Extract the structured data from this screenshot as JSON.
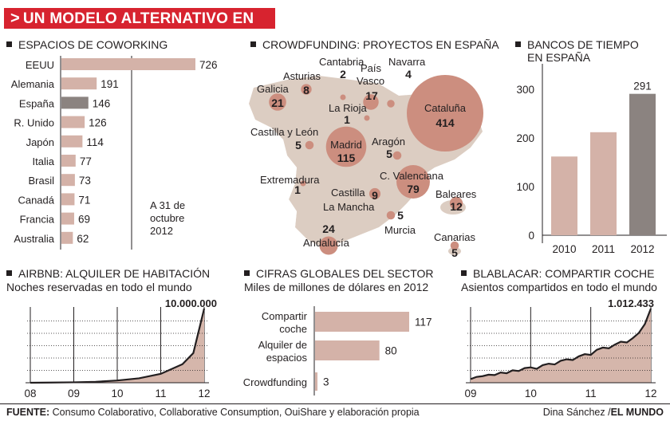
{
  "header": {
    "title": "UN MODELO ALTERNATIVO EN ALZA"
  },
  "colors": {
    "accent": "#d7232f",
    "bar": "#d4b2a8",
    "highlight": "#8b8380",
    "bubble": "#cc8e7f",
    "map": "#d9cbc0",
    "area": "#d5b6ab"
  },
  "coworking": {
    "title": "ESPACIOS DE COWORKING",
    "note": [
      "A 31 de",
      "octubre",
      "2012"
    ]
  },
  "crowdfunding": {
    "title": "CROWDFUNDING: PROYECTOS EN ESPAÑA"
  },
  "bancos": {
    "title_line1": "BANCOS DE TIEMPO",
    "title_line2": "EN ESPAÑA"
  },
  "airbnb": {
    "title": "AIRBNB: ALQUILER DE HABITACIÓN",
    "subtitle": "Noches reservadas en todo el mundo"
  },
  "cifras": {
    "title": "CIFRAS GLOBALES DEL SECTOR",
    "subtitle": "Miles de millones de dólares en 2012"
  },
  "blablacar": {
    "title": "BLABLACAR: COMPARTIR COCHE",
    "subtitle": "Asientos compartidos en todo el mundo"
  },
  "footer": {
    "source_label": "FUENTE:",
    "source_text": "Consumo Colaborativo, Collaborative Consumption, OuiShare y elaboración propia",
    "author": "Dina Sánchez /",
    "paper": "EL MUNDO"
  },
  "chart_data": [
    {
      "id": "coworking",
      "type": "bar",
      "orientation": "horizontal",
      "title": "ESPACIOS DE COWORKING",
      "categories": [
        "EEUU",
        "Alemania",
        "España",
        "R. Unido",
        "Japón",
        "Italia",
        "Brasil",
        "Canadá",
        "Francia",
        "Australia"
      ],
      "values": [
        726,
        191,
        146,
        126,
        114,
        77,
        73,
        71,
        69,
        62
      ],
      "highlight": "España"
    },
    {
      "id": "crowdfunding",
      "type": "bubble-map",
      "title": "CROWDFUNDING: PROYECTOS EN ESPAÑA",
      "regions": [
        {
          "name": "Cantabria",
          "value": 2
        },
        {
          "name": "País Vasco",
          "value": 17
        },
        {
          "name": "Navarra",
          "value": 4
        },
        {
          "name": "Asturias",
          "value": 8
        },
        {
          "name": "Galicia",
          "value": 21
        },
        {
          "name": "La Rioja",
          "value": 1
        },
        {
          "name": "Cataluña",
          "value": 414
        },
        {
          "name": "Castilla y León",
          "value": 5
        },
        {
          "name": "Madrid",
          "value": 115
        },
        {
          "name": "Aragón",
          "value": 5
        },
        {
          "name": "Extremadura",
          "value": 1
        },
        {
          "name": "C. Valenciana",
          "value": 79
        },
        {
          "name": "Castilla La Mancha",
          "value": 9
        },
        {
          "name": "Baleares",
          "value": 12
        },
        {
          "name": "Murcia",
          "value": 5
        },
        {
          "name": "Andalucía",
          "value": 24
        },
        {
          "name": "Canarias",
          "value": 5
        }
      ]
    },
    {
      "id": "bancos",
      "type": "bar",
      "title": "BANCOS DE TIEMPO EN ESPAÑA",
      "categories": [
        "2010",
        "2011",
        "2012"
      ],
      "values": [
        162,
        212,
        291
      ],
      "data_label": "291",
      "yticks": [
        0,
        100,
        200,
        300
      ],
      "ylim": [
        0,
        320
      ]
    },
    {
      "id": "airbnb",
      "type": "area",
      "title": "AIRBNB: ALQUILER DE HABITACIÓN",
      "subtitle": "Noches reservadas en todo el mundo",
      "tick_labels": [
        "08",
        "09",
        "10",
        "11",
        "12"
      ],
      "x": [
        2008.0,
        2008.5,
        2009.0,
        2009.5,
        2010.0,
        2010.5,
        2011.0,
        2011.5,
        2011.75,
        2012.0
      ],
      "values": [
        0,
        30000,
        60000,
        130000,
        300000,
        600000,
        1200000,
        2500000,
        4000000,
        10000000
      ],
      "label": "10.000.000",
      "ylim": [
        0,
        10000000
      ]
    },
    {
      "id": "cifras",
      "type": "bar",
      "orientation": "horizontal",
      "title": "CIFRAS GLOBALES DEL SECTOR",
      "subtitle": "Miles de millones de dólares en 2012",
      "categories": [
        [
          "Compartir",
          "coche"
        ],
        [
          "Alquiler de",
          "espacios"
        ],
        [
          "Crowdfunding"
        ]
      ],
      "values": [
        117,
        80,
        3
      ]
    },
    {
      "id": "blablacar",
      "type": "area",
      "title": "BLABLACAR: COMPARTIR COCHE",
      "subtitle": "Asientos compartidos en todo el mundo",
      "tick_labels": [
        "09",
        "10",
        "11",
        "12"
      ],
      "x": [
        2009.0,
        2009.1,
        2009.2,
        2009.3,
        2009.4,
        2009.5,
        2009.6,
        2009.7,
        2009.8,
        2009.9,
        2010.0,
        2010.1,
        2010.2,
        2010.3,
        2010.4,
        2010.5,
        2010.6,
        2010.7,
        2010.8,
        2010.9,
        2011.0,
        2011.1,
        2011.2,
        2011.3,
        2011.4,
        2011.5,
        2011.6,
        2011.7,
        2011.8,
        2011.9,
        2012.0
      ],
      "values": [
        50000,
        80000,
        90000,
        110000,
        105000,
        140000,
        130000,
        170000,
        160000,
        200000,
        210000,
        190000,
        240000,
        260000,
        250000,
        300000,
        320000,
        310000,
        360000,
        390000,
        380000,
        450000,
        480000,
        470000,
        520000,
        560000,
        550000,
        610000,
        680000,
        800000,
        1012433
      ],
      "label": "1.012.433",
      "ylim": [
        0,
        1012433
      ]
    }
  ]
}
